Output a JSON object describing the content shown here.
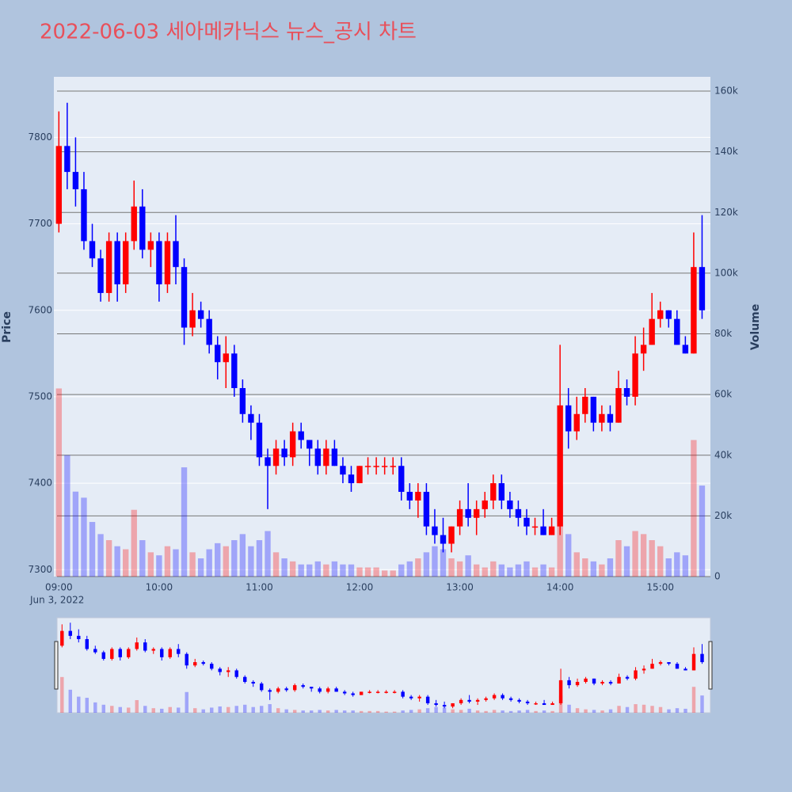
{
  "chart_data": {
    "type": "candlestick",
    "title": "2022-06-03 세아메카닉스 뉴스_공시 차트",
    "x_date_label": "Jun 3, 2022",
    "y_label": "Price",
    "y2_label": "Volume",
    "up_color": "#ff0000",
    "down_color": "#0000ff",
    "x": [
      "2022-06-03 09:00",
      "2022-06-03 09:05",
      "2022-06-03 09:10",
      "2022-06-03 09:15",
      "2022-06-03 09:20",
      "2022-06-03 09:25",
      "2022-06-03 09:30",
      "2022-06-03 09:35",
      "2022-06-03 09:40",
      "2022-06-03 09:45",
      "2022-06-03 09:50",
      "2022-06-03 09:55",
      "2022-06-03 10:00",
      "2022-06-03 10:05",
      "2022-06-03 10:10",
      "2022-06-03 10:15",
      "2022-06-03 10:20",
      "2022-06-03 10:25",
      "2022-06-03 10:30",
      "2022-06-03 10:35",
      "2022-06-03 10:40",
      "2022-06-03 10:45",
      "2022-06-03 10:50",
      "2022-06-03 10:55",
      "2022-06-03 11:00",
      "2022-06-03 11:05",
      "2022-06-03 11:10",
      "2022-06-03 11:15",
      "2022-06-03 11:20",
      "2022-06-03 11:25",
      "2022-06-03 11:30",
      "2022-06-03 11:35",
      "2022-06-03 11:40",
      "2022-06-03 11:45",
      "2022-06-03 11:50",
      "2022-06-03 11:55",
      "2022-06-03 12:00",
      "2022-06-03 12:05",
      "2022-06-03 12:10",
      "2022-06-03 12:15",
      "2022-06-03 12:20",
      "2022-06-03 12:25",
      "2022-06-03 12:30",
      "2022-06-03 12:35",
      "2022-06-03 12:40",
      "2022-06-03 12:45",
      "2022-06-03 12:50",
      "2022-06-03 12:55",
      "2022-06-03 13:00",
      "2022-06-03 13:05",
      "2022-06-03 13:10",
      "2022-06-03 13:15",
      "2022-06-03 13:20",
      "2022-06-03 13:25",
      "2022-06-03 13:30",
      "2022-06-03 13:35",
      "2022-06-03 13:40",
      "2022-06-03 13:45",
      "2022-06-03 13:50",
      "2022-06-03 13:55",
      "2022-06-03 14:00",
      "2022-06-03 14:05",
      "2022-06-03 14:10",
      "2022-06-03 14:15",
      "2022-06-03 14:20",
      "2022-06-03 14:25",
      "2022-06-03 14:30",
      "2022-06-03 14:35",
      "2022-06-03 14:40",
      "2022-06-03 14:45",
      "2022-06-03 14:50",
      "2022-06-03 14:55",
      "2022-06-03 15:00",
      "2022-06-03 15:05",
      "2022-06-03 15:10",
      "2022-06-03 15:15",
      "2022-06-03 15:20",
      "2022-06-03 15:25"
    ],
    "open": [
      7700,
      7790,
      7760,
      7740,
      7680,
      7660,
      7620,
      7680,
      7630,
      7680,
      7720,
      7670,
      7680,
      7630,
      7680,
      7650,
      7580,
      7600,
      7590,
      7560,
      7540,
      7550,
      7510,
      7480,
      7470,
      7430,
      7420,
      7440,
      7430,
      7460,
      7450,
      7440,
      7420,
      7440,
      7420,
      7410,
      7400,
      7420,
      7420,
      7420,
      7420,
      7420,
      7390,
      7380,
      7390,
      7350,
      7340,
      7330,
      7350,
      7370,
      7360,
      7370,
      7380,
      7400,
      7380,
      7370,
      7360,
      7350,
      7350,
      7340,
      7350,
      7490,
      7460,
      7480,
      7500,
      7470,
      7480,
      7470,
      7510,
      7500,
      7550,
      7560,
      7590,
      7600,
      7590,
      7560,
      7550,
      7650
    ],
    "high": [
      7830,
      7840,
      7800,
      7760,
      7700,
      7670,
      7690,
      7690,
      7690,
      7750,
      7740,
      7690,
      7690,
      7690,
      7710,
      7660,
      7620,
      7610,
      7600,
      7570,
      7570,
      7560,
      7520,
      7490,
      7480,
      7440,
      7450,
      7450,
      7470,
      7470,
      7450,
      7450,
      7450,
      7450,
      7430,
      7420,
      7420,
      7430,
      7430,
      7430,
      7430,
      7430,
      7400,
      7400,
      7400,
      7370,
      7360,
      7350,
      7380,
      7400,
      7380,
      7390,
      7410,
      7410,
      7390,
      7380,
      7370,
      7360,
      7370,
      7360,
      7560,
      7510,
      7500,
      7510,
      7500,
      7490,
      7490,
      7530,
      7520,
      7570,
      7580,
      7620,
      7610,
      7600,
      7600,
      7570,
      7690,
      7710
    ],
    "low": [
      7690,
      7740,
      7720,
      7670,
      7650,
      7610,
      7610,
      7610,
      7620,
      7670,
      7660,
      7650,
      7610,
      7620,
      7630,
      7560,
      7570,
      7580,
      7550,
      7520,
      7510,
      7500,
      7470,
      7450,
      7420,
      7370,
      7410,
      7420,
      7420,
      7440,
      7420,
      7410,
      7410,
      7420,
      7400,
      7390,
      7400,
      7410,
      7410,
      7410,
      7410,
      7380,
      7370,
      7360,
      7340,
      7330,
      7320,
      7320,
      7340,
      7350,
      7340,
      7360,
      7370,
      7370,
      7360,
      7350,
      7340,
      7340,
      7340,
      7340,
      7340,
      7440,
      7450,
      7470,
      7460,
      7460,
      7460,
      7470,
      7490,
      7490,
      7530,
      7560,
      7580,
      7580,
      7560,
      7550,
      7550,
      7590
    ],
    "close": [
      7790,
      7760,
      7740,
      7680,
      7660,
      7620,
      7680,
      7630,
      7680,
      7720,
      7670,
      7680,
      7630,
      7680,
      7650,
      7580,
      7600,
      7590,
      7560,
      7540,
      7550,
      7510,
      7480,
      7470,
      7430,
      7420,
      7440,
      7430,
      7460,
      7450,
      7440,
      7420,
      7440,
      7420,
      7410,
      7400,
      7420,
      7420,
      7420,
      7420,
      7420,
      7390,
      7380,
      7390,
      7350,
      7340,
      7330,
      7350,
      7370,
      7360,
      7370,
      7380,
      7400,
      7380,
      7370,
      7360,
      7350,
      7350,
      7340,
      7350,
      7490,
      7460,
      7480,
      7500,
      7470,
      7480,
      7470,
      7510,
      7500,
      7550,
      7560,
      7590,
      7600,
      7590,
      7560,
      7550,
      7650,
      7600
    ],
    "volume": [
      62000,
      40000,
      28000,
      26000,
      18000,
      14000,
      12000,
      10000,
      9000,
      22000,
      12000,
      8000,
      7000,
      10000,
      9000,
      36000,
      8000,
      6000,
      9000,
      11000,
      10000,
      12000,
      14000,
      10000,
      12000,
      15000,
      8000,
      6000,
      5000,
      4000,
      4000,
      5000,
      4000,
      5000,
      4000,
      4000,
      3000,
      3000,
      3000,
      2000,
      2000,
      4000,
      5000,
      6000,
      8000,
      10000,
      9000,
      6000,
      5000,
      7000,
      4000,
      3000,
      5000,
      4000,
      3000,
      4000,
      5000,
      3000,
      4000,
      3000,
      30000,
      14000,
      8000,
      6000,
      5000,
      4000,
      6000,
      12000,
      10000,
      15000,
      14000,
      12000,
      10000,
      6000,
      8000,
      7000,
      45000,
      30000
    ],
    "xlim": [
      "2022-06-03 08:57",
      "2022-06-03 15:30"
    ],
    "xticks": [
      {
        "value": "2022-06-03 09:00",
        "label": "09:00"
      },
      {
        "value": "2022-06-03 10:00",
        "label": "10:00"
      },
      {
        "value": "2022-06-03 11:00",
        "label": "11:00"
      },
      {
        "value": "2022-06-03 12:00",
        "label": "12:00"
      },
      {
        "value": "2022-06-03 13:00",
        "label": "13:00"
      },
      {
        "value": "2022-06-03 14:00",
        "label": "14:00"
      },
      {
        "value": "2022-06-03 15:00",
        "label": "15:00"
      }
    ],
    "ylim": [
      7292,
      7870
    ],
    "yticks": [
      7300,
      7400,
      7500,
      7600,
      7700,
      7800
    ],
    "y2lim": [
      0,
      164700
    ],
    "y2ticks": [
      0,
      {
        "value": 20000,
        "label": "20k"
      },
      {
        "value": 40000,
        "label": "40k"
      },
      {
        "value": 60000,
        "label": "60k"
      },
      {
        "value": 80000,
        "label": "80k"
      },
      {
        "value": 100000,
        "label": "100k"
      },
      {
        "value": 120000,
        "label": "120k"
      },
      {
        "value": 140000,
        "label": "140k"
      },
      {
        "value": 160000,
        "label": "160k"
      }
    ],
    "grid": true,
    "range_slider": true
  }
}
